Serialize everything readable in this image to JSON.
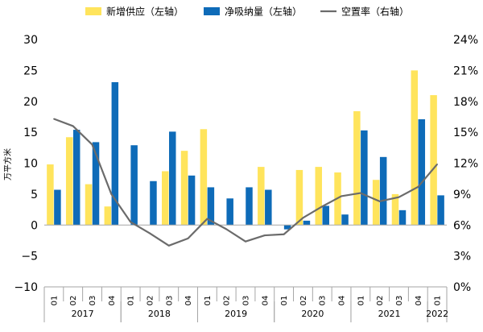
{
  "chart_data": {
    "type": "bar",
    "ylabel": "万平方米",
    "ylim": [
      -10,
      30
    ],
    "y_ticks": [
      -10,
      -5,
      0,
      5,
      10,
      15,
      20,
      25,
      30
    ],
    "y2lim": [
      0,
      24
    ],
    "y2_ticks": [
      "0%",
      "3%",
      "6%",
      "9%",
      "12%",
      "15%",
      "18%",
      "21%",
      "24%"
    ],
    "legend_position": "top",
    "grid": false,
    "categories": [
      "Q1",
      "Q2",
      "Q3",
      "Q4",
      "Q1",
      "Q2",
      "Q3",
      "Q4",
      "Q1",
      "Q2",
      "Q3",
      "Q4",
      "Q1",
      "Q2",
      "Q3",
      "Q4",
      "Q1",
      "Q2",
      "Q3",
      "Q4",
      "Q1"
    ],
    "category_labels": [
      "01",
      "02",
      "03",
      "04",
      "01",
      "02",
      "03",
      "04",
      "01",
      "02",
      "03",
      "04",
      "01",
      "02",
      "03",
      "04",
      "01",
      "02",
      "03",
      "04",
      "01"
    ],
    "years": [
      {
        "label": "2017",
        "start": 0,
        "end": 3
      },
      {
        "label": "2018",
        "start": 4,
        "end": 7
      },
      {
        "label": "2019",
        "start": 8,
        "end": 11
      },
      {
        "label": "2020",
        "start": 12,
        "end": 15
      },
      {
        "label": "2021",
        "start": 16,
        "end": 19
      },
      {
        "label": "2022",
        "start": 20,
        "end": 20
      }
    ],
    "series": [
      {
        "name": "新增供应（左轴）",
        "kind": "bar",
        "axis": "left",
        "color": "#FFE45C",
        "values": [
          9.8,
          14.2,
          6.6,
          3.0,
          0.0,
          0.0,
          8.7,
          12.0,
          15.5,
          0.0,
          0.0,
          9.4,
          0.0,
          8.9,
          9.4,
          8.5,
          18.4,
          7.3,
          5.0,
          25.0,
          21.0
        ]
      },
      {
        "name": "净吸纳量（左轴）",
        "kind": "bar",
        "axis": "left",
        "color": "#0E6BB8",
        "values": [
          5.7,
          15.4,
          13.4,
          23.1,
          12.9,
          7.1,
          15.1,
          8.0,
          6.1,
          4.3,
          6.1,
          5.7,
          -0.7,
          0.7,
          3.1,
          1.7,
          15.3,
          11.0,
          2.4,
          17.1,
          4.8
        ]
      },
      {
        "name": "空置率（右轴）",
        "kind": "line",
        "axis": "right",
        "color": "#6B6B6B",
        "values": [
          16.3,
          15.6,
          13.8,
          9.0,
          6.3,
          5.2,
          4.0,
          4.7,
          6.6,
          5.6,
          4.4,
          5.0,
          5.1,
          6.7,
          7.8,
          8.8,
          9.1,
          8.3,
          8.7,
          9.7,
          11.9
        ]
      }
    ]
  }
}
